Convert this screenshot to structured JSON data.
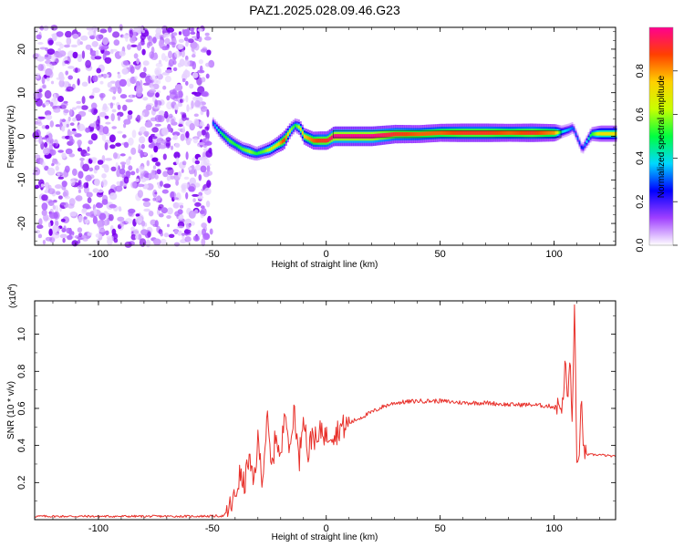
{
  "title": "PAZ1.2025.028.09.46.G23",
  "chart_data": [
    {
      "type": "heatmap",
      "xlabel": "Height of straight line (km)",
      "ylabel": "Frequency (Hz)",
      "xlim": [
        -128,
        127
      ],
      "ylim": [
        -25,
        25
      ],
      "xticks": [
        -100,
        -50,
        0,
        50,
        100
      ],
      "yticks": [
        -20,
        -10,
        0,
        10,
        20
      ],
      "colorbar": {
        "label": "Normalized spectral amplitude",
        "range": [
          0,
          1
        ],
        "ticks": [
          "0.0",
          "0.2",
          "0.4",
          "0.6",
          "0.8"
        ],
        "colors": [
          "#ffffff",
          "#a040ff",
          "#0000ff",
          "#00d8ff",
          "#00ff40",
          "#c8ff00",
          "#ffd000",
          "#ff4000",
          "#ff0090"
        ]
      },
      "noise_region_x": [
        -128,
        -50
      ],
      "ridge": {
        "x": [
          -50,
          -47,
          -43,
          -40,
          -37,
          -34,
          -31,
          -28,
          -25,
          -22,
          -19,
          -16,
          -14,
          -12,
          -10,
          -8,
          -6,
          -3,
          0,
          3,
          10,
          20,
          30,
          40,
          50,
          60,
          70,
          80,
          90,
          100,
          103,
          106,
          108,
          110,
          112,
          116,
          120,
          127
        ],
        "freq": [
          3,
          1,
          -1,
          -2,
          -3,
          -3.5,
          -4,
          -3.5,
          -3,
          -2,
          -1,
          1.5,
          2.5,
          2,
          0,
          -0.5,
          -1,
          -1,
          -1,
          0,
          0,
          0,
          0.5,
          0.5,
          0.8,
          0.8,
          0.8,
          0.8,
          0.8,
          0.8,
          1,
          1.5,
          2,
          -0.5,
          -3,
          0.5,
          0.6,
          0.6
        ],
        "amplitude": [
          0.3,
          0.45,
          0.55,
          0.5,
          0.55,
          0.6,
          0.5,
          0.55,
          0.65,
          0.7,
          0.9,
          0.6,
          0.5,
          0.65,
          0.75,
          0.8,
          0.85,
          0.9,
          0.9,
          1.0,
          1.0,
          1.0,
          0.9,
          0.85,
          0.85,
          0.9,
          0.9,
          0.85,
          0.9,
          0.8,
          0.4,
          0.35,
          0.3,
          0.3,
          0.25,
          0.5,
          0.7,
          0.7
        ]
      }
    },
    {
      "type": "line",
      "xlabel": "Height of straight line (km)",
      "ylabel": "SNR (10 * v/v)",
      "scale_label": "(x10",
      "scale_exp": "4",
      "scale_close": ")",
      "xlim": [
        -128,
        127
      ],
      "ylim": [
        0,
        1.18
      ],
      "xticks": [
        -100,
        -50,
        0,
        50,
        100
      ],
      "yticks": [
        "0.2",
        "0.4",
        "0.6",
        "0.8",
        "1.0"
      ],
      "color": "#e8302a",
      "series": [
        {
          "x": [
            -128,
            -60,
            -45,
            -43,
            -40,
            -38,
            -36,
            -34,
            -32,
            -30,
            -28,
            -26,
            -24,
            -22,
            -20,
            -18,
            -16,
            -14,
            -12,
            -10,
            -8,
            -6,
            -4,
            -2,
            0,
            2,
            4,
            6,
            8,
            10,
            15,
            20,
            25,
            30,
            40,
            50,
            60,
            70,
            80,
            90,
            100,
            104,
            105,
            106,
            107,
            108,
            109,
            110,
            111,
            112,
            113,
            115,
            120,
            127
          ],
          "y": [
            0.018,
            0.018,
            0.02,
            0.05,
            0.12,
            0.24,
            0.18,
            0.34,
            0.18,
            0.42,
            0.22,
            0.55,
            0.26,
            0.48,
            0.3,
            0.65,
            0.34,
            0.62,
            0.3,
            0.6,
            0.34,
            0.48,
            0.4,
            0.5,
            0.44,
            0.48,
            0.46,
            0.5,
            0.5,
            0.52,
            0.55,
            0.58,
            0.61,
            0.63,
            0.64,
            0.64,
            0.63,
            0.63,
            0.62,
            0.62,
            0.61,
            0.62,
            0.88,
            0.6,
            0.9,
            0.5,
            1.18,
            0.3,
            0.28,
            0.7,
            0.36,
            0.35,
            0.35,
            0.34
          ]
        }
      ]
    }
  ]
}
